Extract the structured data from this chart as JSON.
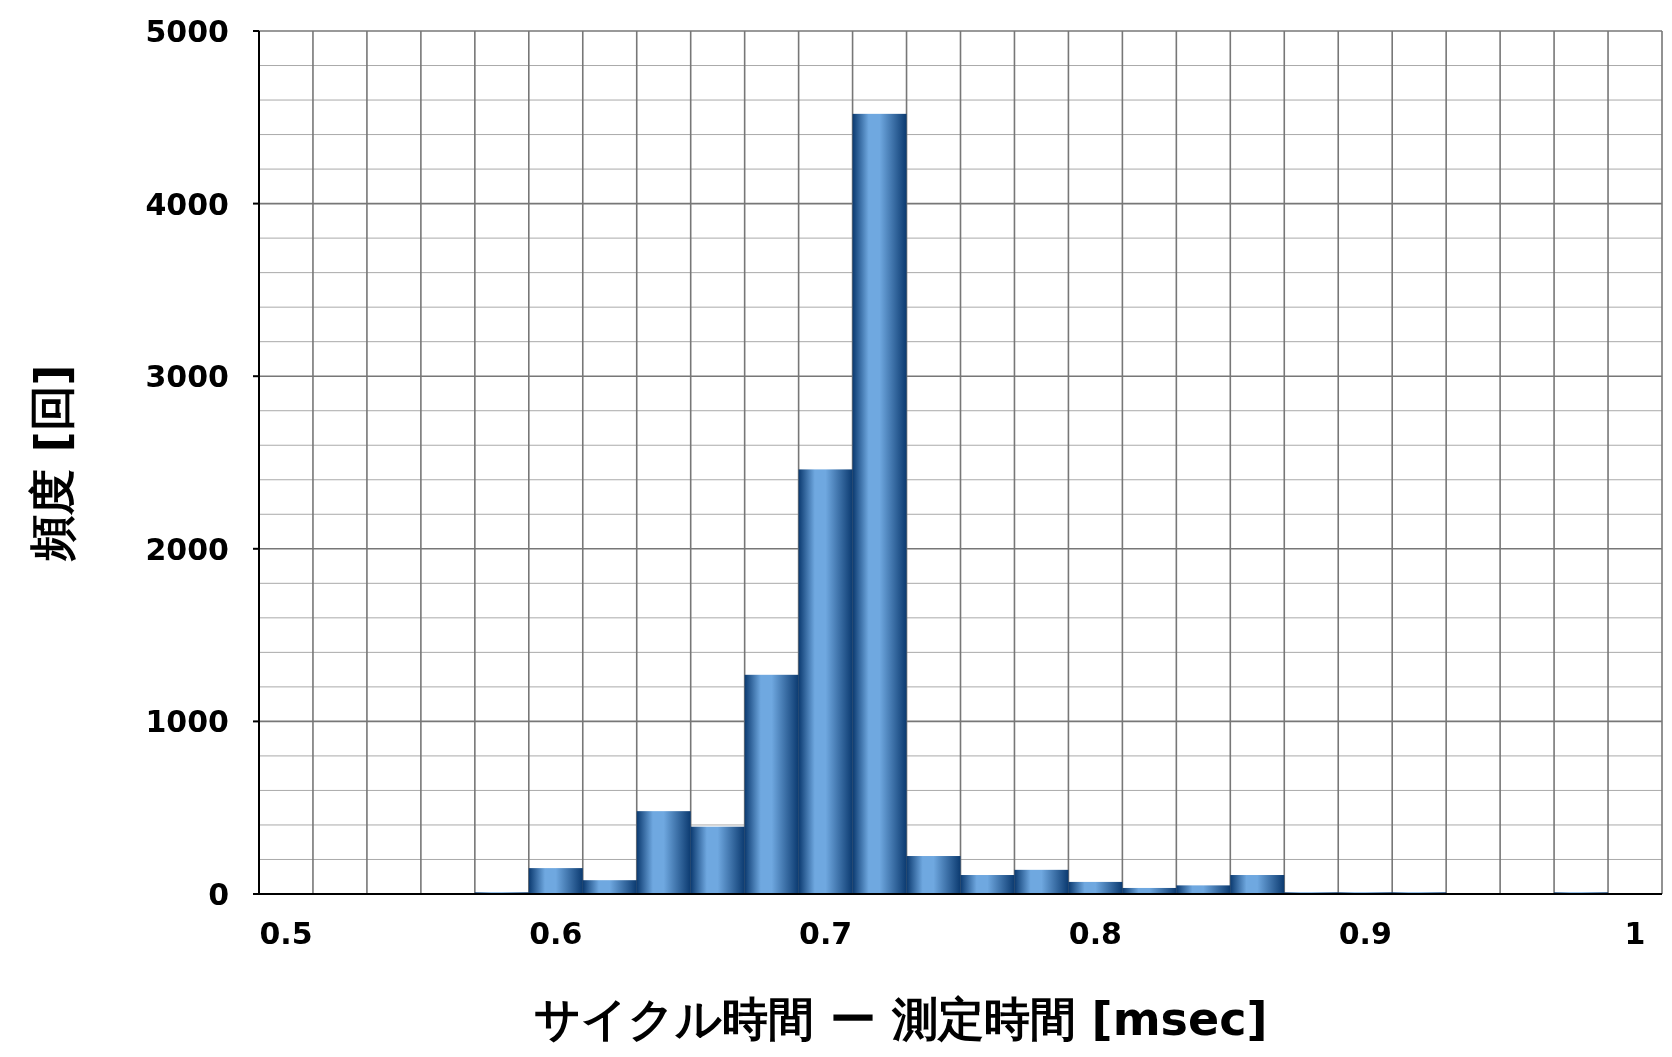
{
  "chart_data": {
    "type": "histogram",
    "xlabel": "サイクル時間 ー 測定時間 [msec]",
    "ylabel": "頻度 [回]",
    "bins": [
      0.49,
      0.51,
      0.53,
      0.55,
      0.57,
      0.59,
      0.61,
      0.63,
      0.65,
      0.67,
      0.69,
      0.71,
      0.73,
      0.75,
      0.77,
      0.79,
      0.81,
      0.83,
      0.85,
      0.87,
      0.89,
      0.91,
      0.93,
      0.95,
      0.97,
      0.99,
      1.01
    ],
    "values": [
      0,
      0,
      0,
      0,
      10,
      150,
      80,
      480,
      390,
      1270,
      2460,
      4520,
      220,
      110,
      140,
      70,
      35,
      50,
      110,
      10,
      10,
      10,
      0,
      0,
      10,
      0
    ],
    "color": "#6fa8e0",
    "xlim": [
      0.49,
      1.01
    ],
    "xticks": [
      0.5,
      0.6,
      0.7,
      0.8,
      0.9,
      1
    ],
    "ylim": [
      0,
      5000
    ],
    "yticks": [
      0,
      1000,
      2000,
      3000,
      4000,
      5000
    ],
    "grid": true
  }
}
